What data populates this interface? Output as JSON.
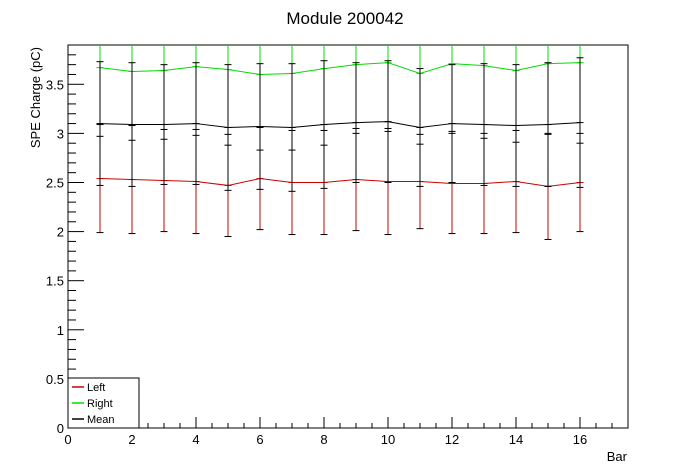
{
  "chart_data": {
    "type": "line",
    "title": "Module 200042",
    "xlabel": "Bar",
    "ylabel": "SPE Charge (pC)",
    "xlim": [
      0,
      17.5
    ],
    "ylim": [
      0,
      3.9
    ],
    "x_ticks": [
      0,
      2,
      4,
      6,
      8,
      10,
      12,
      14,
      16
    ],
    "x_tick_labels": [
      "0",
      "2",
      "4",
      "6",
      "8",
      "10",
      "12",
      "14",
      "16"
    ],
    "y_ticks": [
      0,
      0.5,
      1,
      1.5,
      2,
      2.5,
      3,
      3.5
    ],
    "y_tick_labels": [
      "0",
      "0.5",
      "1",
      "1.5",
      "2",
      "2.5",
      "3",
      "3.5"
    ],
    "x": [
      1,
      2,
      3,
      4,
      5,
      6,
      7,
      8,
      9,
      10,
      11,
      12,
      13,
      14,
      15,
      16
    ],
    "series": [
      {
        "name": "Left",
        "color": "#cc0000",
        "values": [
          2.54,
          2.53,
          2.52,
          2.51,
          2.47,
          2.54,
          2.5,
          2.5,
          2.53,
          2.51,
          2.51,
          2.49,
          2.49,
          2.51,
          2.46,
          2.5
        ],
        "errors": [
          0.55,
          0.55,
          0.52,
          0.53,
          0.52,
          0.52,
          0.53,
          0.53,
          0.52,
          0.54,
          0.48,
          0.51,
          0.51,
          0.52,
          0.54,
          0.5
        ]
      },
      {
        "name": "Right",
        "color": "#00dd00",
        "values": [
          3.67,
          3.63,
          3.64,
          3.68,
          3.65,
          3.6,
          3.61,
          3.66,
          3.7,
          3.72,
          3.61,
          3.71,
          3.69,
          3.64,
          3.71,
          3.72
        ],
        "errors": [
          0.7,
          0.7,
          0.7,
          0.7,
          0.77,
          0.77,
          0.78,
          0.78,
          0.7,
          0.7,
          0.72,
          0.69,
          0.74,
          0.73,
          0.72,
          0.82
        ]
      },
      {
        "name": "Mean",
        "color": "#000000",
        "values": [
          3.1,
          3.09,
          3.09,
          3.1,
          3.06,
          3.07,
          3.06,
          3.09,
          3.11,
          3.12,
          3.06,
          3.1,
          3.09,
          3.08,
          3.09,
          3.11
        ],
        "errors": [
          0.63,
          0.63,
          0.61,
          0.62,
          0.64,
          0.64,
          0.65,
          0.65,
          0.61,
          0.62,
          0.6,
          0.6,
          0.62,
          0.62,
          0.63,
          0.66
        ]
      }
    ],
    "legend_position": "bottom-left",
    "grid": false
  }
}
